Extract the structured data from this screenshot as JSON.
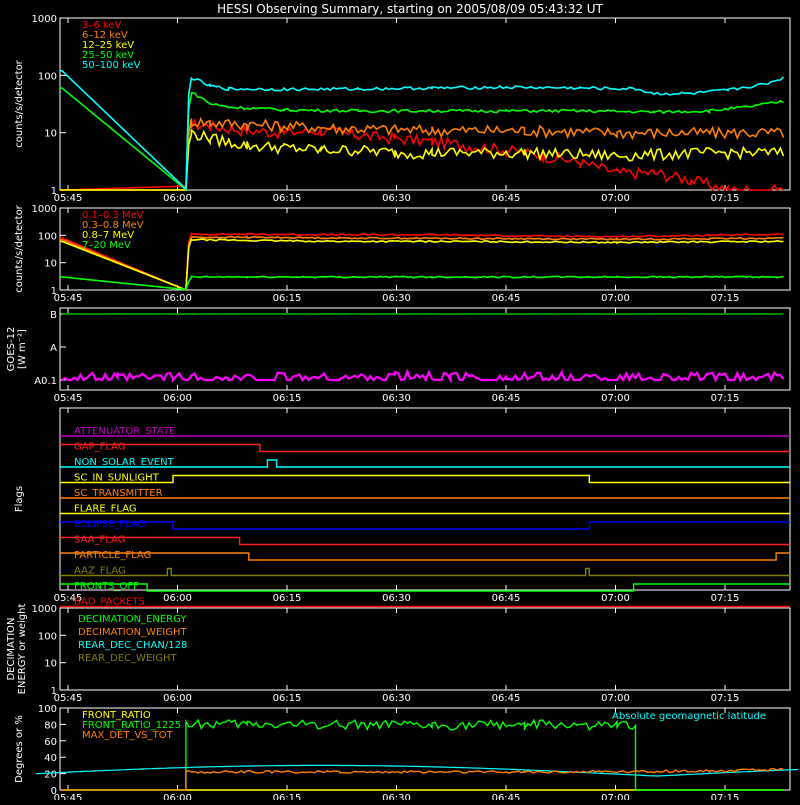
{
  "title": "HESSI Observing Summary, starting on 2005/08/09 05:43:32 UT",
  "time_ticks": [
    "05:45",
    "06:00",
    "06:15",
    "06:30",
    "06:45",
    "07:00",
    "07:15"
  ],
  "chart_data": [
    {
      "id": "panel-1",
      "type": "line",
      "ylabel": "counts/s/detector",
      "yscale": "log",
      "ylim": [
        1,
        1000
      ],
      "yticks": [
        "1",
        "10",
        "100",
        "1000"
      ],
      "legend_position": "top-left",
      "series": [
        {
          "name": "3–6 keV",
          "color": "#ff0000",
          "pre": 1,
          "points": [
            [
              6.7,
              1
            ],
            [
              7,
              14
            ],
            [
              8,
              13
            ],
            [
              10,
              11
            ],
            [
              12,
              10
            ],
            [
              14,
              11
            ],
            [
              16,
              9
            ],
            [
              18,
              8
            ],
            [
              20,
              7
            ],
            [
              22,
              6
            ],
            [
              24,
              5
            ],
            [
              26,
              4
            ],
            [
              28,
              3
            ],
            [
              30,
              2
            ],
            [
              32,
              2
            ],
            [
              34,
              1.5
            ],
            [
              36,
              1
            ],
            [
              39,
              1
            ]
          ]
        },
        {
          "name": "6–12 keV",
          "color": "#ff8000",
          "pre": 1,
          "points": [
            [
              6.7,
              1
            ],
            [
              7,
              16
            ],
            [
              8,
              15
            ],
            [
              10,
              14
            ],
            [
              15,
              12
            ],
            [
              20,
              11
            ],
            [
              25,
              11
            ],
            [
              30,
              10
            ],
            [
              35,
              10
            ],
            [
              39,
              10
            ]
          ]
        },
        {
          "name": "12–25 keV",
          "color": "#ffff00",
          "pre": 1,
          "points": [
            [
              6.7,
              1
            ],
            [
              7,
              10
            ],
            [
              8,
              8
            ],
            [
              9,
              7
            ],
            [
              10,
              6
            ],
            [
              12,
              5.5
            ],
            [
              14,
              5
            ],
            [
              16,
              5
            ],
            [
              18,
              4.5
            ],
            [
              20,
              4.5
            ],
            [
              25,
              4.5
            ],
            [
              30,
              4
            ],
            [
              35,
              4.5
            ],
            [
              39,
              4.5
            ]
          ]
        },
        {
          "name": "25–50 keV",
          "color": "#00ff00",
          "pre": 60,
          "points": [
            [
              6.7,
              1
            ],
            [
              7,
              50
            ],
            [
              8,
              32
            ],
            [
              9,
              28
            ],
            [
              12,
              25
            ],
            [
              16,
              24
            ],
            [
              20,
              24
            ],
            [
              24,
              24
            ],
            [
              28,
              24
            ],
            [
              32,
              23
            ],
            [
              35,
              24
            ],
            [
              37,
              28
            ],
            [
              39,
              35
            ]
          ]
        },
        {
          "name": "50–100 keV",
          "color": "#00ffff",
          "pre": 120,
          "points": [
            [
              6.7,
              1
            ],
            [
              7,
              90
            ],
            [
              8,
              65
            ],
            [
              9,
              58
            ],
            [
              12,
              57
            ],
            [
              16,
              58
            ],
            [
              20,
              60
            ],
            [
              24,
              62
            ],
            [
              28,
              60
            ],
            [
              31,
              58
            ],
            [
              32,
              48
            ],
            [
              34,
              48
            ],
            [
              36,
              55
            ],
            [
              38,
              70
            ],
            [
              39,
              90
            ]
          ]
        }
      ]
    },
    {
      "id": "panel-2",
      "type": "line",
      "ylabel": "counts/s/detector",
      "yscale": "log",
      "ylim": [
        1,
        1000
      ],
      "yticks": [
        "1",
        "10",
        "100",
        "1000"
      ],
      "legend_position": "top-left",
      "series": [
        {
          "name": "0.1–0.3 MeV",
          "color": "#ff0000",
          "pre": 80,
          "points": [
            [
              6.7,
              1
            ],
            [
              7,
              110
            ],
            [
              10,
              110
            ],
            [
              15,
              105
            ],
            [
              20,
              105
            ],
            [
              25,
              95
            ],
            [
              30,
              90
            ],
            [
              35,
              100
            ],
            [
              39,
              110
            ]
          ]
        },
        {
          "name": "0.3–0.8 MeV",
          "color": "#ff8000",
          "pre": 70,
          "points": [
            [
              6.7,
              1
            ],
            [
              7,
              85
            ],
            [
              10,
              85
            ],
            [
              15,
              80
            ],
            [
              20,
              78
            ],
            [
              25,
              75
            ],
            [
              30,
              72
            ],
            [
              35,
              75
            ],
            [
              39,
              80
            ]
          ]
        },
        {
          "name": "0.8–7 MeV",
          "color": "#ffff00",
          "pre": 60,
          "points": [
            [
              6.7,
              1
            ],
            [
              7,
              70
            ],
            [
              10,
              65
            ],
            [
              15,
              60
            ],
            [
              20,
              60
            ],
            [
              25,
              58
            ],
            [
              30,
              55
            ],
            [
              35,
              58
            ],
            [
              39,
              60
            ]
          ]
        },
        {
          "name": "7–20 MeV",
          "color": "#00ff00",
          "pre": 3,
          "points": [
            [
              6.7,
              1
            ],
            [
              7,
              3
            ],
            [
              10,
              3
            ],
            [
              15,
              3
            ],
            [
              20,
              3
            ],
            [
              25,
              3
            ],
            [
              30,
              3
            ],
            [
              35,
              3
            ],
            [
              39,
              3
            ]
          ]
        }
      ]
    },
    {
      "id": "panel-3",
      "type": "line",
      "ylabel": "GOES-12",
      "ylabel2": "[W m⁻²]",
      "yscale": "log",
      "yticks": [
        "A0.1",
        "A",
        "B"
      ],
      "series": [
        {
          "name": "",
          "color": "#ff00ff",
          "points": [
            [
              0,
              0.12
            ],
            [
              3,
              0.11
            ],
            [
              6,
              0.12
            ],
            [
              9,
              0.1
            ],
            [
              12,
              0.12
            ],
            [
              15,
              0.11
            ],
            [
              18,
              0.13
            ],
            [
              21,
              0.12
            ],
            [
              24,
              0.11
            ],
            [
              27,
              0.12
            ],
            [
              30,
              0.11
            ],
            [
              33,
              0.12
            ],
            [
              36,
              0.11
            ],
            [
              39,
              0.12
            ]
          ]
        },
        {
          "name": "",
          "color": "#00c000",
          "points": [
            [
              0,
              10
            ],
            [
              39,
              10
            ]
          ]
        }
      ]
    },
    {
      "id": "panel-4",
      "type": "line",
      "ylabel": "Flags",
      "flags": [
        {
          "name": "ATTENUATOR_STATE",
          "color": "#c000c0",
          "segments": [
            [
              0,
              39,
              0
            ]
          ]
        },
        {
          "name": "GAP_FLAG",
          "color": "#ff2020",
          "segments": [
            [
              0,
              10.7,
              1
            ],
            [
              10.7,
              39,
              0
            ]
          ]
        },
        {
          "name": "NON_SOLAR_EVENT",
          "color": "#00ffff",
          "segments": [
            [
              0,
              11.1,
              0
            ],
            [
              11.1,
              11.6,
              1
            ],
            [
              11.6,
              39,
              0
            ]
          ]
        },
        {
          "name": "SC_IN_SUNLIGHT",
          "color": "#ffff00",
          "segments": [
            [
              0,
              6.0,
              0
            ],
            [
              6.0,
              28.5,
              1
            ],
            [
              28.5,
              39,
              0
            ]
          ]
        },
        {
          "name": "SC_TRANSMITTER",
          "color": "#ff8000",
          "segments": [
            [
              0,
              39,
              0
            ]
          ]
        },
        {
          "name": "FLARE_FLAG",
          "color": "#ffff00",
          "segments": [
            [
              0,
              39,
              0
            ]
          ]
        },
        {
          "name": "ECLIPSE_FLAG",
          "color": "#0000ff",
          "segments": [
            [
              0,
              6.0,
              1
            ],
            [
              6.0,
              28.5,
              0
            ],
            [
              28.5,
              39,
              1
            ]
          ]
        },
        {
          "name": "SAA_FLAG",
          "color": "#ff2020",
          "segments": [
            [
              0,
              9.6,
              1
            ],
            [
              9.6,
              39,
              0
            ]
          ]
        },
        {
          "name": "PARTICLE_FLAG",
          "color": "#ff8000",
          "segments": [
            [
              0,
              10.1,
              1
            ],
            [
              10.1,
              38.6,
              0
            ],
            [
              38.6,
              39,
              1
            ]
          ]
        },
        {
          "name": "AAZ_FLAG",
          "color": "#808000",
          "segments": [
            [
              0,
              5.7,
              0
            ],
            [
              5.7,
              5.9,
              1
            ],
            [
              5.9,
              28.3,
              0
            ],
            [
              28.3,
              28.5,
              1
            ],
            [
              28.5,
              39,
              0
            ]
          ]
        },
        {
          "name": "FRONTS_OFF",
          "color": "#00ff00",
          "segments": [
            [
              0,
              4.6,
              1
            ],
            [
              4.6,
              30.9,
              0
            ],
            [
              30.9,
              39,
              1
            ]
          ]
        },
        {
          "name": "BAD_PACKETS",
          "color": "#ff0000",
          "segments": [
            [
              0,
              39,
              0
            ]
          ]
        }
      ]
    },
    {
      "id": "panel-5",
      "type": "line",
      "ylabel": "DECIMATION",
      "ylabel2": "ENERGY or weight",
      "yscale": "log",
      "ylim": [
        1,
        1000
      ],
      "yticks": [
        "1",
        "10",
        "100",
        "1000"
      ],
      "legend_position": "top-left",
      "series": [
        {
          "name": "DECIMATION_ENERGY",
          "color": "#00ff00",
          "points": []
        },
        {
          "name": "DECIMATION_WEIGHT",
          "color": "#ff8000",
          "points": []
        },
        {
          "name": "REAR_DEC_CHAN/128",
          "color": "#00ffff",
          "points": []
        },
        {
          "name": "REAR_DEC_WEIGHT",
          "color": "#808000",
          "points": []
        }
      ]
    },
    {
      "id": "panel-6",
      "type": "line",
      "ylabel": "Degrees or %",
      "ylim": [
        0,
        100
      ],
      "yticks": [
        "0",
        "20",
        "40",
        "60",
        "80",
        "100"
      ],
      "legend_position": "top-left",
      "annotation": "Absolute geomagnetic latitude",
      "series": [
        {
          "name": "FRONT_RATIO",
          "color": "#ffff00",
          "points": [
            [
              0,
              0
            ],
            [
              39,
              0
            ]
          ]
        },
        {
          "name": "FRONT_RATIO_1225",
          "color": "#00ff00",
          "points": [
            [
              0,
              0
            ],
            [
              6.7,
              0
            ],
            [
              6.7,
              80
            ],
            [
              10,
              80
            ],
            [
              15,
              80
            ],
            [
              20,
              78
            ],
            [
              25,
              80
            ],
            [
              30,
              78
            ],
            [
              31,
              78
            ],
            [
              31,
              0
            ],
            [
              39,
              0
            ]
          ]
        },
        {
          "name": "MAX_DET_VS_TOT",
          "color": "#ff8000",
          "points": [
            [
              0,
              0
            ],
            [
              6.7,
              0
            ],
            [
              6.7,
              22
            ],
            [
              15,
              22
            ],
            [
              25,
              22
            ],
            [
              35,
              23
            ],
            [
              39,
              25
            ]
          ]
        }
      ]
    }
  ],
  "flag_labels": [
    "ATTENUATOR_STATE",
    "GAP_FLAG",
    "NON_SOLAR_EVENT",
    "SC_IN_SUNLIGHT",
    "SC_TRANSMITTER",
    "FLARE_FLAG",
    "ECLIPSE_FLAG",
    "SAA_FLAG",
    "PARTICLE_FLAG",
    "AAZ_FLAG",
    "FRONTS_OFF",
    "BAD_PACKETS"
  ]
}
